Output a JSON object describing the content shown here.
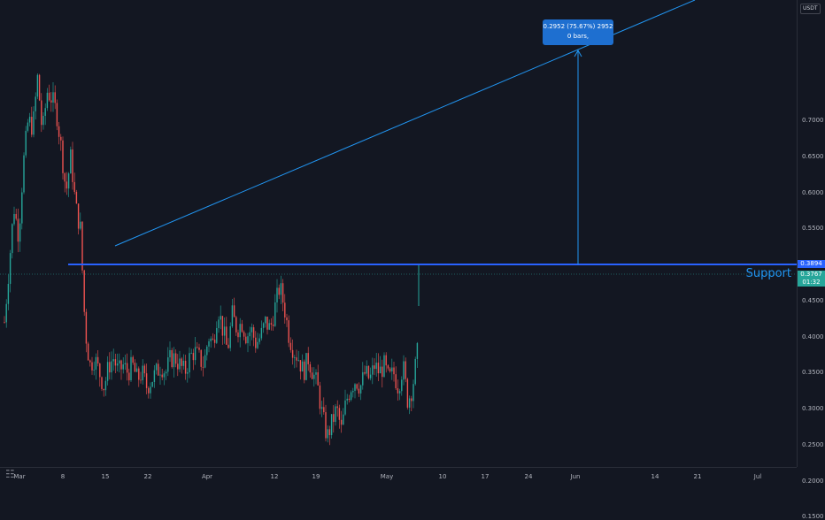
{
  "chart_data": {
    "type": "candlestick",
    "title": "",
    "xlabel": "",
    "ylabel": "",
    "quote_currency": "USDT",
    "ylim": [
      0.1,
      0.78
    ],
    "grid": false,
    "x_ticks": [
      "Mar",
      "8",
      "15",
      "22",
      "Apr",
      "12",
      "19",
      "May",
      "10",
      "17",
      "24",
      "Jun",
      "14",
      "21",
      "Jul"
    ],
    "y_ticks": [
      "0.1500",
      "0.2000",
      "0.2500",
      "0.3000",
      "0.3500",
      "0.4000",
      "0.4500",
      "0.5000",
      "0.5500",
      "0.6000",
      "0.6500",
      "0.7000"
    ],
    "price_path": [
      [
        0.42,
        0.5,
        0.58,
        0.54,
        0.64,
        0.7,
        0.69,
        0.76,
        0.68,
        0.74,
        0.73,
        0.71,
        0.66,
        0.6,
        0.65,
        0.58
      ],
      [
        0.55,
        0.41,
        0.36,
        0.37,
        0.35,
        0.33,
        0.36,
        0.37,
        0.35,
        0.36,
        0.35,
        0.36,
        0.34,
        0.35,
        0.33,
        0.34
      ],
      [
        0.35,
        0.36,
        0.35,
        0.37,
        0.37,
        0.36,
        0.35,
        0.37,
        0.38,
        0.37,
        0.36,
        0.4,
        0.39,
        0.44,
        0.41,
        0.38
      ],
      [
        0.43,
        0.41,
        0.42,
        0.4,
        0.41,
        0.39,
        0.4,
        0.42,
        0.41,
        0.44,
        0.47,
        0.44,
        0.4,
        0.38,
        0.37,
        0.35
      ],
      [
        0.37,
        0.35,
        0.33,
        0.29,
        0.26,
        0.28,
        0.3,
        0.27,
        0.31,
        0.33,
        0.34,
        0.33,
        0.35,
        0.34,
        0.36,
        0.35
      ],
      [
        0.36,
        0.34,
        0.35,
        0.33,
        0.36,
        0.31,
        0.33,
        0.3767
      ]
    ],
    "last_price": "0.3767",
    "countdown": "01:32",
    "support_price": "0.3894",
    "support_label": "Support",
    "measurement": {
      "line1": "0.2952 (75.67%) 2952",
      "line2": "0 bars,"
    }
  }
}
